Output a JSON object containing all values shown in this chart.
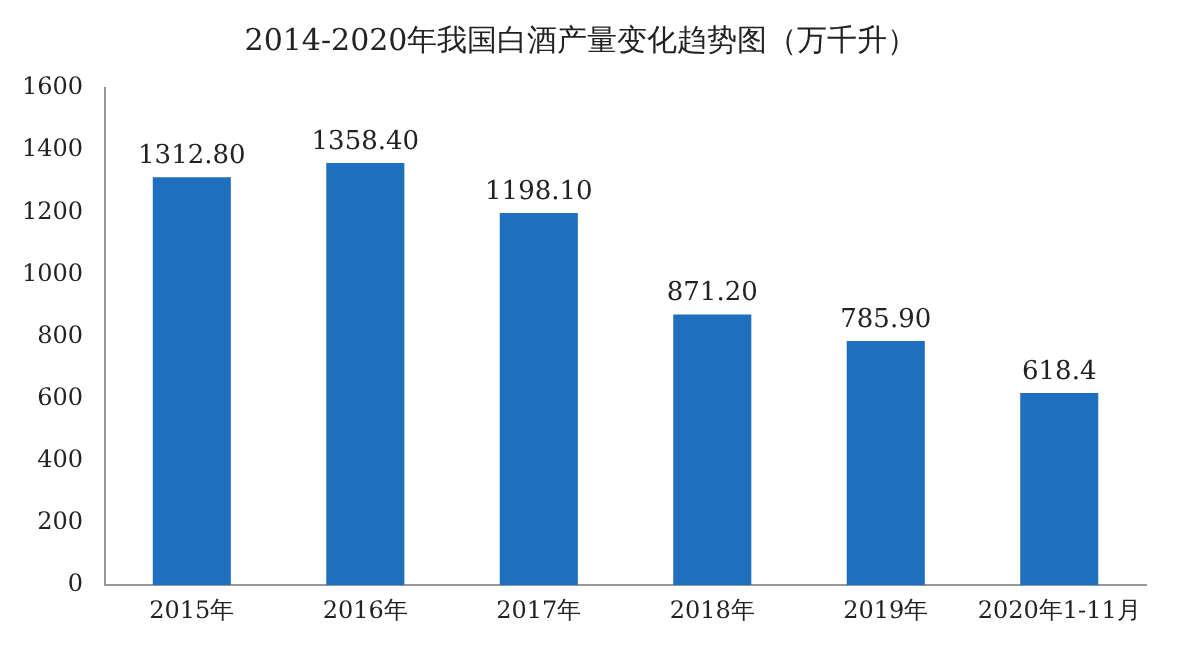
{
  "chart_data": {
    "type": "bar",
    "title": "2014-2020年我国白酒产量变化趋势图（万千升）",
    "categories": [
      "2015年",
      "2016年",
      "2017年",
      "2018年",
      "2019年",
      "2020年1-11月"
    ],
    "values": [
      1312.8,
      1358.4,
      1198.1,
      871.2,
      785.9,
      618.4
    ],
    "value_labels": [
      "1312.80",
      "1358.40",
      "1198.10",
      "871.20",
      "785.90",
      "618.4"
    ],
    "color": "#1f6fbf",
    "ylim": [
      0,
      1600
    ],
    "yticks": [
      0,
      200,
      400,
      600,
      800,
      1000,
      1200,
      1400,
      1600
    ],
    "grid": false,
    "legend": false
  }
}
